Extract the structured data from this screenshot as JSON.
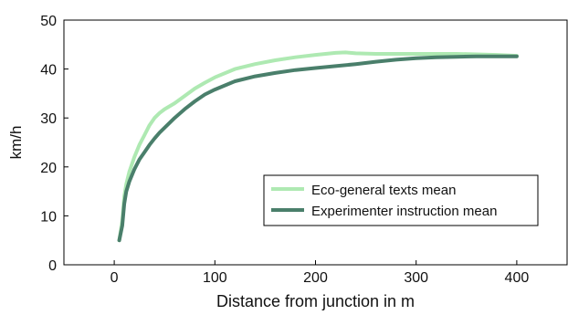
{
  "chart_data": {
    "type": "line",
    "title": "",
    "xlabel": "Distance from junction in m",
    "ylabel": "km/h",
    "xlim": [
      -50,
      450
    ],
    "ylim": [
      0,
      50
    ],
    "x_ticks": [
      "0",
      "100",
      "200",
      "300",
      "400"
    ],
    "y_ticks": [
      "0",
      "10",
      "20",
      "30",
      "40",
      "50"
    ],
    "grid": false,
    "legend_position": "lower-right",
    "series": [
      {
        "name": "Eco-general texts mean",
        "color": "#aee9b2",
        "x": [
          5,
          8,
          10,
          12,
          15,
          20,
          25,
          30,
          35,
          40,
          45,
          50,
          60,
          70,
          80,
          90,
          100,
          120,
          140,
          160,
          180,
          200,
          220,
          230,
          240,
          260,
          280,
          300,
          320,
          340,
          360,
          380,
          400
        ],
        "y": [
          5,
          9,
          14,
          16.5,
          19,
          22,
          24.5,
          26.5,
          28.5,
          30,
          31,
          31.8,
          33,
          34.5,
          36,
          37.2,
          38.3,
          40,
          41,
          41.8,
          42.4,
          42.9,
          43.3,
          43.4,
          43.2,
          43.1,
          43.1,
          43.1,
          43.1,
          43.1,
          43,
          42.9,
          42.7
        ]
      },
      {
        "name": "Experimenter instruction mean",
        "color": "#4a7f6b",
        "x": [
          5,
          8,
          10,
          12,
          15,
          20,
          25,
          30,
          35,
          40,
          45,
          50,
          60,
          70,
          80,
          90,
          100,
          120,
          140,
          160,
          180,
          200,
          220,
          240,
          260,
          280,
          300,
          320,
          340,
          360,
          380,
          400
        ],
        "y": [
          5,
          8,
          12.5,
          15,
          17,
          19.5,
          21.5,
          23,
          24.5,
          25.8,
          27,
          28,
          30,
          31.8,
          33.4,
          34.8,
          35.8,
          37.5,
          38.5,
          39.2,
          39.8,
          40.2,
          40.6,
          41,
          41.5,
          41.9,
          42.2,
          42.4,
          42.5,
          42.6,
          42.6,
          42.6
        ]
      }
    ]
  }
}
